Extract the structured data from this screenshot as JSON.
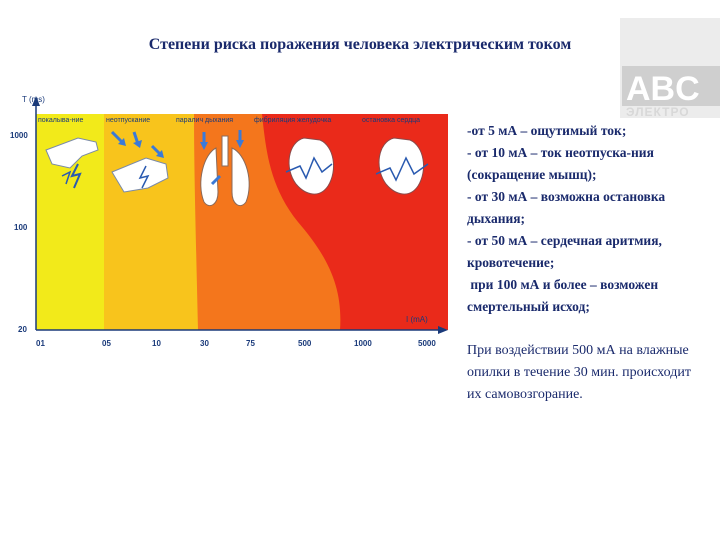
{
  "title": "Степени риска поражения человека электрическим током",
  "logo": {
    "line1": "ABC",
    "line2": "ЭЛЕКТРО"
  },
  "colors": {
    "yellow_light": "#f2ea1a",
    "yellow": "#f8c41c",
    "orange": "#f4761c",
    "red": "#ea2a1a",
    "axis_text": "#1a3a7a",
    "title": "#1a2a6c",
    "logo_grey": "#cfcfcf"
  },
  "chart_data": {
    "type": "area",
    "ylabel": "T (ms)",
    "xlabel": "I (mA)",
    "y_ticks": [
      "1000",
      "100",
      "20"
    ],
    "x_ticks": [
      "01",
      "05",
      "10",
      "30",
      "75",
      "500",
      "1000",
      "5000"
    ],
    "zones": [
      {
        "label": "покалыва-ние",
        "color": "#f2ea1a",
        "icon": "hand-touch-icon"
      },
      {
        "label": "неотпускание",
        "color": "#f8c41c",
        "icon": "hand-grip-icon"
      },
      {
        "label": "паралич дыхания",
        "color": "#f4761c",
        "icon": "lungs-icon"
      },
      {
        "label": "фибриляция желудочка",
        "color": "#ea2a1a",
        "icon": "heart-fibrillation-icon"
      },
      {
        "label": "остановка сердца",
        "color": "#ea2a1a",
        "icon": "heart-stop-icon"
      }
    ]
  },
  "effects": [
    "-от 5 мА – ощутимый ток;",
    "- от 10 мА – ток неотпуска-ния (сокращение мышц);",
    "- от 30 мА – возможна остановка дыхания;",
    "- от 50 мА – сердечная аритмия, кровотечение;",
    " при 100 мА и более – возможен смертельный исход;"
  ],
  "note": "При воздействии 500 мА на влажные опилки в течение 30 мин. происходит их самовозгорание."
}
